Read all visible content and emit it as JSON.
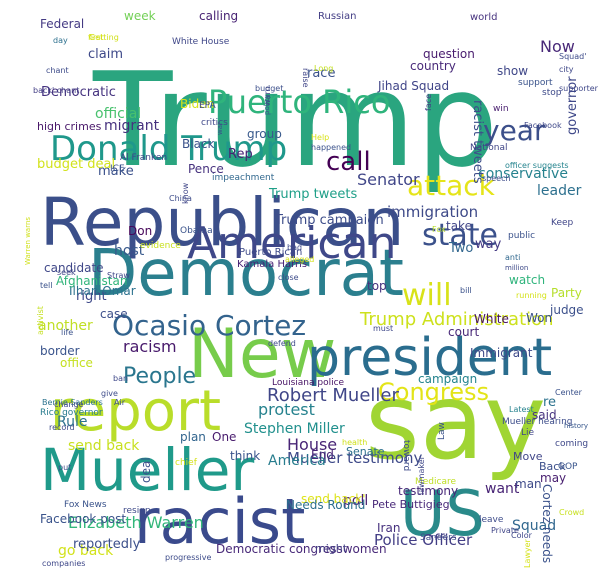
{
  "words": [
    {
      "text": "Trump",
      "color": "#2aa57f"
    },
    {
      "text": "Republican",
      "color": "#3b4f8a"
    },
    {
      "text": "Democrat",
      "color": "#2b7f8e"
    },
    {
      "text": "New",
      "color": "#77cc4b"
    },
    {
      "text": "president",
      "color": "#2a6d8e"
    },
    {
      "text": "say",
      "color": "#a0d533"
    },
    {
      "text": "report",
      "color": "#b9dd2a"
    },
    {
      "text": "Mueller",
      "color": "#1f9a8a"
    },
    {
      "text": "racist",
      "color": "#3a4a8c"
    },
    {
      "text": "US",
      "color": "#2a8a8a"
    },
    {
      "text": "American",
      "color": "#3f4889"
    },
    {
      "text": "Donald Trump",
      "color": "#1f988b"
    },
    {
      "text": "Puerto Rico",
      "color": "#2fb47c"
    },
    {
      "text": "Ocasio Cortez",
      "color": "#33638d"
    },
    {
      "text": "attack",
      "color": "#e5e419"
    },
    {
      "text": "will",
      "color": "#d8e219"
    },
    {
      "text": "state",
      "color": "#3b518b"
    },
    {
      "text": "year",
      "color": "#3c4f8a"
    },
    {
      "text": "call",
      "color": "#440154"
    },
    {
      "text": "Congress",
      "color": "#e3e418"
    },
    {
      "text": "People",
      "color": "#2a768e"
    },
    {
      "text": "Trump Administration",
      "color": "#cde11d"
    },
    {
      "text": "Robert Mueller",
      "color": "#404688"
    },
    {
      "text": "racism",
      "color": "#481a6c"
    },
    {
      "text": "Now",
      "color": "#482878"
    },
    {
      "text": "Senator",
      "color": "#404688"
    },
    {
      "text": "immigration",
      "color": "#3e4a89"
    },
    {
      "text": "Elizabeth Warren",
      "color": "#32b67a"
    },
    {
      "text": "Mueller testimony",
      "color": "#3e4a89"
    },
    {
      "text": "Police Officer",
      "color": "#433e85"
    },
    {
      "text": "protest",
      "color": "#26828e"
    },
    {
      "text": "House",
      "color": "#482576"
    },
    {
      "text": "America",
      "color": "#287d8e"
    },
    {
      "text": "Stephen Miller",
      "color": "#21908d"
    },
    {
      "text": "send back",
      "color": "#c8e020"
    },
    {
      "text": "go back",
      "color": "#d2e21b"
    },
    {
      "text": "Facebook post",
      "color": "#3a538b"
    },
    {
      "text": "poll",
      "color": "#481f70"
    },
    {
      "text": "want",
      "color": "#482475"
    },
    {
      "text": "Squad",
      "color": "#31678e"
    },
    {
      "text": "conservative",
      "color": "#26828e"
    },
    {
      "text": "leader",
      "color": "#2d708e"
    },
    {
      "text": "governor",
      "color": "#3f4889"
    },
    {
      "text": "racist tweets",
      "color": "#3d4e8a"
    },
    {
      "text": "Trump tweets",
      "color": "#1f9f88"
    },
    {
      "text": "Trump campaign",
      "color": "#3d4d8a"
    },
    {
      "text": "official",
      "color": "#48c16e"
    },
    {
      "text": "migrant",
      "color": "#46317e"
    },
    {
      "text": "Rep",
      "color": "#482475"
    },
    {
      "text": "claim",
      "color": "#3e4989"
    },
    {
      "text": "Democratic",
      "color": "#463480"
    },
    {
      "text": "Federal",
      "color": "#443a83"
    },
    {
      "text": "race",
      "color": "#3b528b"
    },
    {
      "text": "country",
      "color": "#482979"
    },
    {
      "text": "show",
      "color": "#3f4788"
    },
    {
      "text": "question",
      "color": "#481c6e"
    },
    {
      "text": "Jihad Squad",
      "color": "#404588"
    },
    {
      "text": "calling",
      "color": "#482374"
    },
    {
      "text": "week",
      "color": "#73d056"
    },
    {
      "text": "Russian",
      "color": "#433e85"
    },
    {
      "text": "world",
      "color": "#46327e"
    },
    {
      "text": "Black",
      "color": "#3b528b"
    },
    {
      "text": "group",
      "color": "#38598c"
    },
    {
      "text": "Biden",
      "color": "#d5e21a"
    },
    {
      "text": "make",
      "color": "#3b518b"
    },
    {
      "text": "Don",
      "color": "#450559"
    },
    {
      "text": "host",
      "color": "#38598c"
    },
    {
      "text": "right",
      "color": "#3e4989"
    },
    {
      "text": "case",
      "color": "#3c4f8a"
    },
    {
      "text": "another",
      "color": "#c0df25"
    },
    {
      "text": "budget deal",
      "color": "#d2e21b"
    },
    {
      "text": "high crimes",
      "color": "#481769"
    },
    {
      "text": "Pence",
      "color": "#46317e"
    },
    {
      "text": "Ilhan Omar",
      "color": "#2c718e"
    },
    {
      "text": "Afghanistan",
      "color": "#31b57b"
    },
    {
      "text": "candidate",
      "color": "#3f4788"
    },
    {
      "text": "border",
      "color": "#3a548c"
    },
    {
      "text": "office",
      "color": "#c5e021"
    },
    {
      "text": "Rule",
      "color": "#2c728e"
    },
    {
      "text": "Two",
      "color": "#31668e"
    },
    {
      "text": "way",
      "color": "#443983"
    },
    {
      "text": "take",
      "color": "#404588"
    },
    {
      "text": "top",
      "color": "#46327e"
    },
    {
      "text": "Party",
      "color": "#b5de2b"
    },
    {
      "text": "judge",
      "color": "#3c508b"
    },
    {
      "text": "watch",
      "color": "#2fb47c"
    },
    {
      "text": "White",
      "color": "#481467"
    },
    {
      "text": "Won",
      "color": "#3b518b"
    },
    {
      "text": "Immigrant",
      "color": "#3e4989"
    },
    {
      "text": "court",
      "color": "#482878"
    },
    {
      "text": "campaign",
      "color": "#25848e"
    },
    {
      "text": "said",
      "color": "#46337f"
    },
    {
      "text": "re",
      "color": "#2c728e"
    },
    {
      "text": "plan",
      "color": "#32658e"
    },
    {
      "text": "One",
      "color": "#481b6d"
    },
    {
      "text": "think",
      "color": "#3a548c"
    },
    {
      "text": "deal",
      "color": "#3b528b"
    },
    {
      "text": "End",
      "color": "#482576"
    },
    {
      "text": "Senate",
      "color": "#2d708e"
    },
    {
      "text": "send back'",
      "color": "#dde318"
    },
    {
      "text": "testimony",
      "color": "#482979"
    },
    {
      "text": "Pete Buttigieg",
      "color": "#482878"
    },
    {
      "text": "Cortez needs",
      "color": "#3b528b"
    },
    {
      "text": "man",
      "color": "#3e4a89"
    },
    {
      "text": "may",
      "color": "#481f70"
    },
    {
      "text": "Back",
      "color": "#3c4f8a"
    },
    {
      "text": "Move",
      "color": "#404688"
    },
    {
      "text": "Iran",
      "color": "#46317e"
    },
    {
      "text": "reportedly",
      "color": "#3c508b"
    },
    {
      "text": "Democratic congresswomen",
      "color": "#482979"
    },
    {
      "text": "might",
      "color": "#433d84"
    },
    {
      "text": "Needs Round",
      "color": "#2d708e"
    },
    {
      "text": "Mueller hearing",
      "color": "#3d4d8a"
    },
    {
      "text": "Lie",
      "color": "#404688"
    },
    {
      "text": "Kamala Harris",
      "color": "#482475"
    },
    {
      "text": "Puerto Rican",
      "color": "#3e4a89"
    },
    {
      "text": "Al Franken",
      "color": "#3f4788"
    },
    {
      "text": "ICE",
      "color": "#3a538b"
    },
    {
      "text": "EPA",
      "color": "#3f4889"
    },
    {
      "text": "White House",
      "color": "#3f4788"
    },
    {
      "text": "impeachment",
      "color": "#31688e"
    },
    {
      "text": "Bernie Sanders",
      "color": "#2c738e"
    },
    {
      "text": "Rico governor",
      "color": "#287c8e"
    },
    {
      "text": "Louisiana police",
      "color": "#471365"
    },
    {
      "text": "Fox News",
      "color": "#3a538b"
    },
    {
      "text": "Latest",
      "color": "#26828e"
    },
    {
      "text": "history",
      "color": "#38588c"
    },
    {
      "text": "coming",
      "color": "#3f4889"
    },
    {
      "text": "GOP",
      "color": "#39558c"
    },
    {
      "text": "Facebook",
      "color": "#3f4889"
    },
    {
      "text": "National",
      "color": "#404688"
    },
    {
      "text": "speech",
      "color": "#3e4c8a"
    },
    {
      "text": "officer suggests",
      "color": "#25848e"
    },
    {
      "text": "public",
      "color": "#3b528b"
    },
    {
      "text": "Keep",
      "color": "#404688"
    },
    {
      "text": "Fox",
      "color": "#b8de29"
    },
    {
      "text": "anti",
      "color": "#31688e"
    },
    {
      "text": "million",
      "color": "#3e4a89"
    },
    {
      "text": "win",
      "color": "#481d6f"
    },
    {
      "text": "support",
      "color": "#3a538b"
    },
    {
      "text": "face",
      "color": "#433e85"
    },
    {
      "text": "stop",
      "color": "#3e4a89"
    },
    {
      "text": "day",
      "color": "#2d708e"
    },
    {
      "text": "chant",
      "color": "#3e4c8a"
    },
    {
      "text": "Getting",
      "color": "#d1e11c"
    },
    {
      "text": "back' chant",
      "color": "#433e85"
    },
    {
      "text": "first",
      "color": "#d5e21a"
    },
    {
      "text": "critics",
      "color": "#3f4889"
    },
    {
      "text": "war",
      "color": "#3b528b"
    },
    {
      "text": "policy",
      "color": "#3a548c"
    },
    {
      "text": "budget",
      "color": "#3c4f8a"
    },
    {
      "text": "warn",
      "color": "#3f4788"
    },
    {
      "text": "raise",
      "color": "#404588"
    },
    {
      "text": "Long",
      "color": "#c5e021"
    },
    {
      "text": "city",
      "color": "#3f4889"
    },
    {
      "text": "Squad'",
      "color": "#3e4c8a"
    },
    {
      "text": "supporter",
      "color": "#3f4788"
    },
    {
      "text": "Help",
      "color": "#d8e219"
    },
    {
      "text": "happened",
      "color": "#3b528b"
    },
    {
      "text": "China",
      "color": "#3e4c8a"
    },
    {
      "text": "know",
      "color": "#404688"
    },
    {
      "text": "Obama",
      "color": "#3a538b"
    },
    {
      "text": "evidence",
      "color": "#c8e020"
    },
    {
      "text": "seek",
      "color": "#3f4788"
    },
    {
      "text": "tell",
      "color": "#3b528b"
    },
    {
      "text": "activist",
      "color": "#c5e021"
    },
    {
      "text": "Warren warns",
      "color": "#d0e11c"
    },
    {
      "text": "Straw",
      "color": "#3f4889"
    },
    {
      "text": "alleged",
      "color": "#d5e21a"
    },
    {
      "text": "close",
      "color": "#3e4c8a"
    },
    {
      "text": "bad",
      "color": "#3e4a89"
    },
    {
      "text": "bill",
      "color": "#3b528b"
    },
    {
      "text": "running",
      "color": "#d5e21a"
    },
    {
      "text": "must",
      "color": "#3f4889"
    },
    {
      "text": "defend",
      "color": "#3e4a89"
    },
    {
      "text": "life",
      "color": "#3b528b"
    },
    {
      "text": "ban",
      "color": "#3f4889"
    },
    {
      "text": "give",
      "color": "#3e4c8a"
    },
    {
      "text": "Air",
      "color": "#3c4f8a"
    },
    {
      "text": "change",
      "color": "#3f4788"
    },
    {
      "text": "record",
      "color": "#3e4a89"
    },
    {
      "text": "put",
      "color": "#3e4c8a"
    },
    {
      "text": "chief",
      "color": "#d5e21a"
    },
    {
      "text": "health",
      "color": "#d0e11c"
    },
    {
      "text": "Center",
      "color": "#3b528b"
    },
    {
      "text": "toward",
      "color": "#3e4c8a"
    },
    {
      "text": "Medicare",
      "color": "#c0df25"
    },
    {
      "text": "lawmaker",
      "color": "#3f4788"
    },
    {
      "text": "Sanders",
      "color": "#3e4a89"
    },
    {
      "text": "Law",
      "color": "#3b528b"
    },
    {
      "text": "leave",
      "color": "#3e4c8a"
    },
    {
      "text": "Private",
      "color": "#404688"
    },
    {
      "text": "Color",
      "color": "#3f4889"
    },
    {
      "text": "Lawyer",
      "color": "#d5e21a"
    },
    {
      "text": "Crowd",
      "color": "#c8e020"
    },
    {
      "text": "resign",
      "color": "#3e4a89"
    },
    {
      "text": "companies",
      "color": "#3f4889"
    },
    {
      "text": "progressive",
      "color": "#3e4c8a"
    },
    {
      "text": "debate",
      "color": "#404588"
    }
  ]
}
